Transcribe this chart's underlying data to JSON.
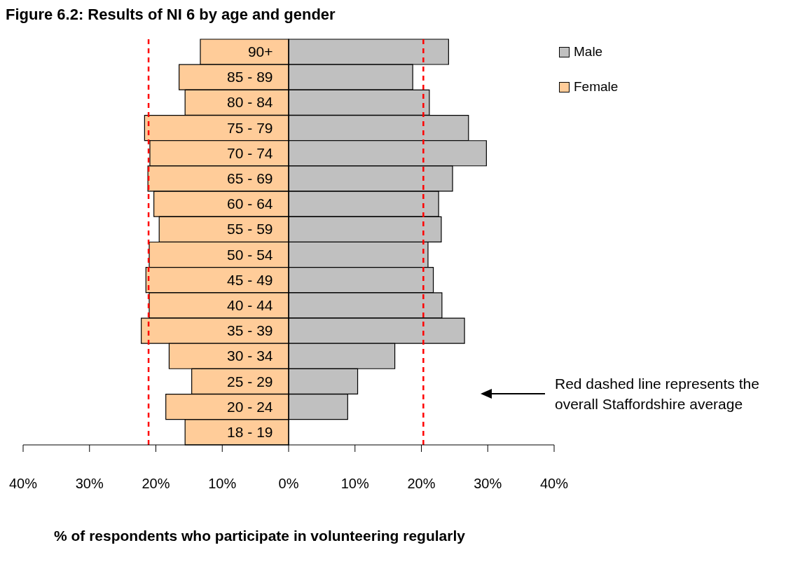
{
  "chart_data": {
    "type": "bar",
    "orientation": "horizontal",
    "title": "Figure 6.2: Results of NI 6 by age and gender",
    "xlabel": "% of respondents who participate in volunteering regularly",
    "categories": [
      "90+",
      "85 - 89",
      "80 - 84",
      "75 - 79",
      "70 - 74",
      "65 - 69",
      "60 - 64",
      "55 - 59",
      "50 - 54",
      "45 - 49",
      "40 - 44",
      "35 - 39",
      "30 - 34",
      "25 - 29",
      "20 - 24",
      "18 - 19"
    ],
    "series": [
      {
        "name": "Male",
        "color": "#c0c0c0",
        "values": [
          24.1,
          18.7,
          21.2,
          27.1,
          29.8,
          24.7,
          22.6,
          23.0,
          21.0,
          21.8,
          23.1,
          26.5,
          16.0,
          10.4,
          8.9,
          null
        ]
      },
      {
        "name": "Female",
        "color": "#ffcc99",
        "values": [
          -13.3,
          -16.5,
          -15.6,
          -21.7,
          -20.9,
          -21.2,
          -20.3,
          -19.5,
          -21.0,
          -21.5,
          -21.0,
          -22.2,
          -18.0,
          -14.6,
          -18.5,
          -15.6
        ]
      }
    ],
    "xlim": [
      -40,
      40
    ],
    "xticks": [
      {
        "value": -40,
        "label": "40%"
      },
      {
        "value": -30,
        "label": "30%"
      },
      {
        "value": -20,
        "label": "20%"
      },
      {
        "value": -10,
        "label": "10%"
      },
      {
        "value": 0,
        "label": "0%"
      },
      {
        "value": 10,
        "label": "10%"
      },
      {
        "value": 20,
        "label": "20%"
      },
      {
        "value": 30,
        "label": "30%"
      },
      {
        "value": 40,
        "label": "40%"
      }
    ],
    "ref_lines": [
      {
        "axis": "x",
        "value": -21.1,
        "color": "#ff0000",
        "line_style": "dashed"
      },
      {
        "axis": "x",
        "value": 20.3,
        "color": "#ff0000",
        "line_style": "dashed"
      }
    ],
    "annotations": [
      "Red dashed line represents the overall Staffordshire average"
    ],
    "legend": "top right",
    "stacked": true
  }
}
